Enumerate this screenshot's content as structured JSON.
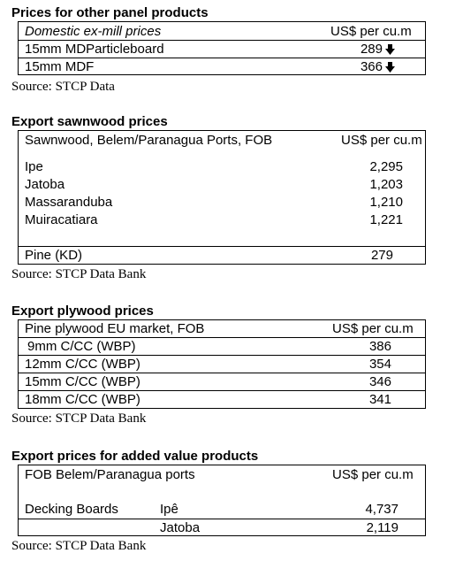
{
  "panel": {
    "title": "Prices for other panel products",
    "header": {
      "label": "Domestic ex-mill prices",
      "unit": "US$ per cu.m"
    },
    "rows": [
      {
        "label": "15mm MDParticleboard",
        "value": "289",
        "trend": "down-arrow-icon"
      },
      {
        "label": "15mm MDF",
        "value": "366",
        "trend": "down-arrow-icon"
      }
    ],
    "source": "Source: STCP Data"
  },
  "sawnwood": {
    "title": "Export sawnwood prices",
    "header": {
      "label": "Sawnwood, Belem/Paranagua Ports, FOB",
      "unit": "US$ per cu.m"
    },
    "rows": [
      {
        "label": "Ipe",
        "value": "2,295"
      },
      {
        "label": "Jatoba",
        "value": "1,203"
      },
      {
        "label": "Massaranduba",
        "value": "1,210"
      },
      {
        "label": "Muiracatiara",
        "value": "1,221"
      },
      {
        "label": "Pine (KD)",
        "value": "279"
      }
    ],
    "source": "Source: STCP Data Bank"
  },
  "plywood": {
    "title": "Export plywood prices",
    "header": {
      "label": "Pine plywood EU market, FOB",
      "unit": "US$ per cu.m"
    },
    "rows": [
      {
        "label": "9mm C/CC (WBP)",
        "value": "386"
      },
      {
        "label": "12mm C/CC (WBP)",
        "value": "354"
      },
      {
        "label": "15mm C/CC (WBP)",
        "value": "346"
      },
      {
        "label": "18mm C/CC (WBP)",
        "value": "341"
      }
    ],
    "source": "Source: STCP Data Bank"
  },
  "added_value": {
    "title": "Export prices for added value products",
    "header": {
      "label": "FOB Belem/Paranagua ports",
      "unit": "US$ per cu.m"
    },
    "rows": [
      {
        "label": "Decking Boards",
        "species": "Ipê",
        "value": "4,737"
      },
      {
        "label": "",
        "species": "Jatoba",
        "value": "2,119"
      }
    ],
    "source": "Source: STCP Data Bank"
  }
}
